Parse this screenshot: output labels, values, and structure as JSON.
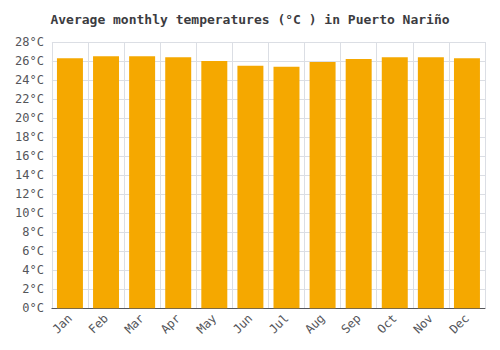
{
  "chart_data": {
    "type": "bar",
    "title": "Average monthly temperatures (°C ) in Puerto Nariño",
    "categories": [
      "Jan",
      "Feb",
      "Mar",
      "Apr",
      "May",
      "Jun",
      "Jul",
      "Aug",
      "Sep",
      "Oct",
      "Nov",
      "Dec"
    ],
    "values": [
      26.3,
      26.5,
      26.5,
      26.4,
      26.0,
      25.5,
      25.4,
      25.9,
      26.2,
      26.4,
      26.4,
      26.3
    ],
    "color": "#F5A800",
    "ylim": [
      0,
      28
    ],
    "yticks": [
      {
        "value": 0,
        "label": "0°C"
      },
      {
        "value": 2,
        "label": "2°C"
      },
      {
        "value": 4,
        "label": "4°C"
      },
      {
        "value": 6,
        "label": "6°C"
      },
      {
        "value": 8,
        "label": "8°C"
      },
      {
        "value": 10,
        "label": "10°C"
      },
      {
        "value": 12,
        "label": "12°C"
      },
      {
        "value": 14,
        "label": "14°C"
      },
      {
        "value": 16,
        "label": "16°C"
      },
      {
        "value": 18,
        "label": "18°C"
      },
      {
        "value": 20,
        "label": "20°C"
      },
      {
        "value": 22,
        "label": "22°C"
      },
      {
        "value": 24,
        "label": "24°C"
      },
      {
        "value": 26,
        "label": "26°C"
      },
      {
        "value": 28,
        "label": "28°C"
      }
    ],
    "grid": true
  }
}
